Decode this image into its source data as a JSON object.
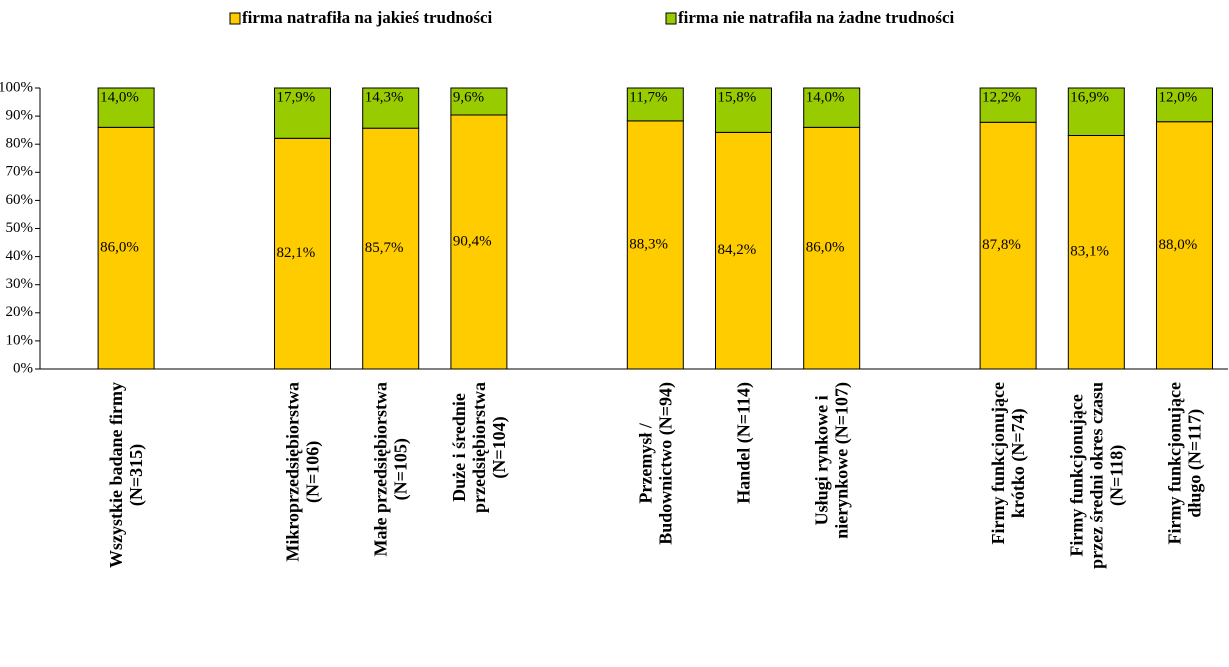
{
  "chart_data": {
    "type": "bar",
    "stacked": true,
    "categories": [
      "Wszystkie badane firmy\n(N=315)",
      null,
      "Mikroprzedsiębiorstwa\n(N=106)",
      "Małe przedsiębiorstwa\n(N=105)",
      "Duże i średnie\nprzedsiębiorstwa\n(N=104)",
      null,
      "Przemysł /\nBudownictwo (N=94)",
      "Handel (N=114)",
      "Usługi rynkowe i\nnierynkowe (N=107)",
      null,
      "Firmy funkcjonujące\nkrótko (N=74)",
      "Firmy funkcjonujące\nprzez średni okres czasu\n(N=118)",
      "Firmy funkcjonujące\ndługo (N=117)"
    ],
    "series": [
      {
        "name": "firma natrafiła na jakieś trudności",
        "color": "#ffcc00",
        "values": [
          86.0,
          null,
          82.1,
          85.7,
          90.4,
          null,
          88.3,
          84.2,
          86.0,
          null,
          87.8,
          83.1,
          88.0
        ],
        "value_labels": [
          "86,0%",
          null,
          "82,1%",
          "85,7%",
          "90,4%",
          null,
          "88,3%",
          "84,2%",
          "86,0%",
          null,
          "87,8%",
          "83,1%",
          "88,0%"
        ]
      },
      {
        "name": "firma nie natrafiła na żadne trudności",
        "color": "#99cc00",
        "values": [
          14.0,
          null,
          17.9,
          14.3,
          9.6,
          null,
          11.7,
          15.8,
          14.0,
          null,
          12.2,
          16.9,
          12.0
        ],
        "value_labels": [
          "14,0%",
          null,
          "17,9%",
          "14,3%",
          "9,6%",
          null,
          "11,7%",
          "15,8%",
          "14,0%",
          null,
          "12,2%",
          "16,9%",
          "12,0%"
        ]
      }
    ],
    "ylim": [
      0,
      100
    ],
    "yticks": [
      {
        "value": 0,
        "label": "0%"
      },
      {
        "value": 10,
        "label": "10%"
      },
      {
        "value": 20,
        "label": "20%"
      },
      {
        "value": 30,
        "label": "30%"
      },
      {
        "value": 40,
        "label": "40%"
      },
      {
        "value": 50,
        "label": "50%"
      },
      {
        "value": 60,
        "label": "60%"
      },
      {
        "value": 70,
        "label": "70%"
      },
      {
        "value": 80,
        "label": "80%"
      },
      {
        "value": 90,
        "label": "90%"
      },
      {
        "value": 100,
        "label": "100%"
      }
    ],
    "legend": "top"
  }
}
